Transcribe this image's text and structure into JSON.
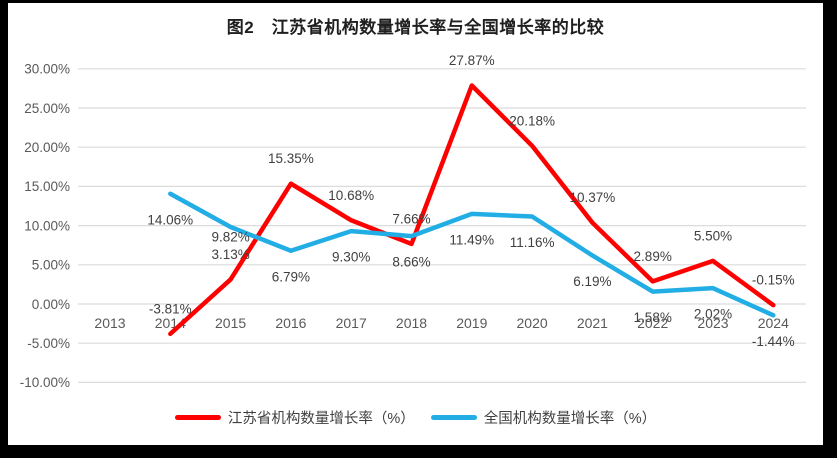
{
  "title": "图2　江苏省机构数量增长率与全国增长率的比较",
  "chart_data": {
    "type": "line",
    "categories": [
      "2013",
      "2014",
      "2015",
      "2016",
      "2017",
      "2018",
      "2019",
      "2020",
      "2021",
      "2022",
      "2023",
      "2024"
    ],
    "series": [
      {
        "id": "jiangsu",
        "name": "江苏省机构数量增长率（%）",
        "color": "#FE0000",
        "values": [
          null,
          -3.81,
          3.13,
          15.35,
          10.68,
          7.66,
          27.87,
          20.18,
          10.37,
          2.89,
          5.5,
          -0.15
        ],
        "data_labels": [
          null,
          "-3.81%",
          "3.13%",
          "15.35%",
          "10.68%",
          "7.66%",
          "27.87%",
          "20.18%",
          "10.37%",
          "2.89%",
          "5.50%",
          "-0.15%"
        ],
        "label_position": "above"
      },
      {
        "id": "national",
        "name": "全国机构数量增长率（%）",
        "color": "#22AEE5",
        "values": [
          null,
          14.06,
          9.82,
          6.79,
          9.3,
          8.66,
          11.49,
          11.16,
          6.19,
          1.58,
          2.02,
          -1.44
        ],
        "data_labels": [
          null,
          "14.06%",
          "9.82%",
          "6.79%",
          "9.30%",
          "8.66%",
          "11.49%",
          "11.16%",
          "6.19%",
          "1.58%",
          "2.02%",
          "-1.44%"
        ],
        "label_position": "below",
        "label_dy_overrides": {
          "2": 10
        }
      }
    ],
    "y_axis": {
      "min": -10,
      "max": 30,
      "step": 5,
      "tick_labels": [
        "30.00%",
        "25.00%",
        "20.00%",
        "15.00%",
        "10.00%",
        "5.00%",
        "0.00%",
        "-5.00%",
        "-10.00%"
      ]
    },
    "grid": true,
    "legend_position": "bottom",
    "colors": {
      "frame": "#000000",
      "plot_background": "#FFFFFF",
      "gridline": "#DCDCDC",
      "axis_text": "#595959",
      "data_label_text": "#404040",
      "title_text": "#1F1F1F"
    }
  }
}
